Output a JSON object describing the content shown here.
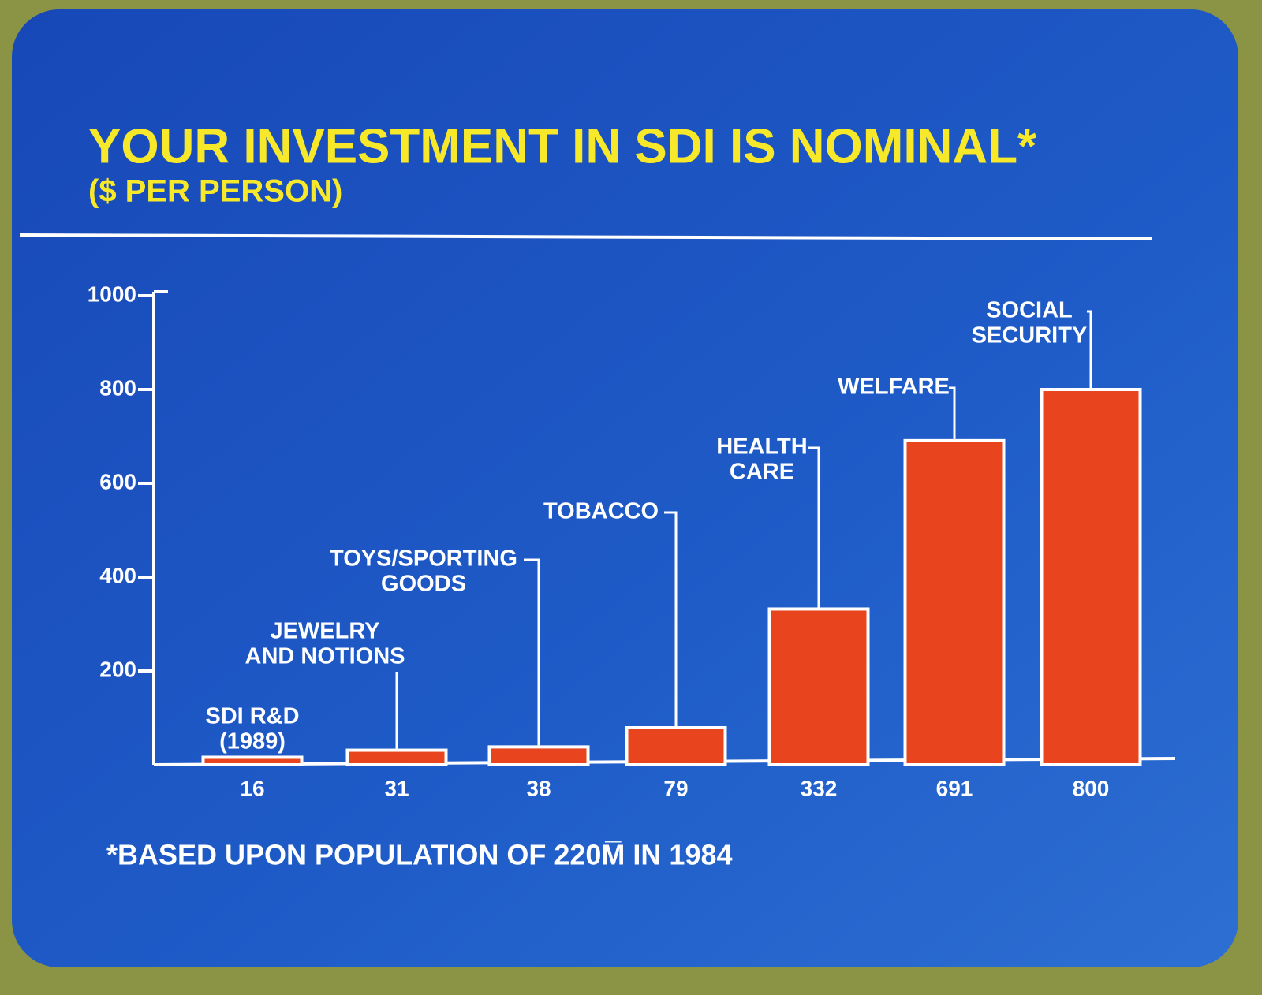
{
  "chart_data": {
    "type": "bar",
    "title": "YOUR INVESTMENT IN SDI IS NOMINAL*",
    "subtitle": "($ PER PERSON)",
    "footnote": "*BASED UPON POPULATION OF 220M̅ IN 1984",
    "categories": [
      [
        "SDI R&D",
        "(1989)"
      ],
      [
        "JEWELRY",
        "AND NOTIONS"
      ],
      [
        "TOYS/SPORTING",
        "GOODS"
      ],
      [
        "TOBACCO"
      ],
      [
        "HEALTH",
        "CARE"
      ],
      [
        "WELFARE"
      ],
      [
        "SOCIAL",
        "SECURITY"
      ]
    ],
    "values": [
      16,
      31,
      38,
      79,
      332,
      691,
      800
    ],
    "color": "#e8441e",
    "ylim": [
      0,
      1000
    ],
    "yticks": [
      200,
      400,
      600,
      800,
      1000
    ]
  }
}
